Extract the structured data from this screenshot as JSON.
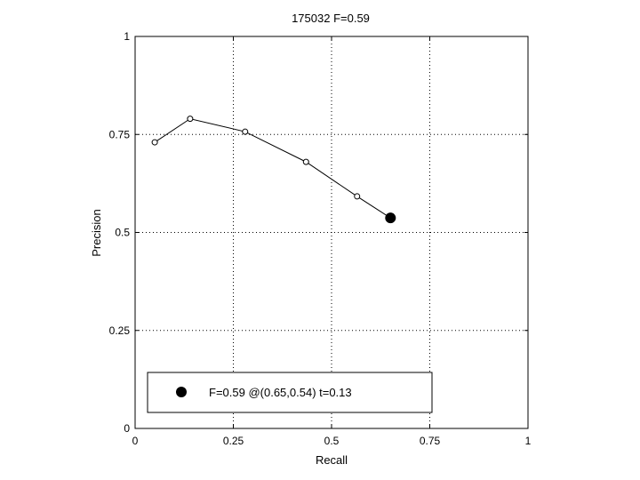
{
  "chart_data": {
    "type": "line",
    "title": "175032 F=0.59",
    "xlabel": "Recall",
    "ylabel": "Precision",
    "xlim": [
      0,
      1
    ],
    "ylim": [
      0,
      1
    ],
    "xticks": [
      "0",
      "0.25",
      "0.5",
      "0.75",
      "1"
    ],
    "yticks": [
      "0",
      "0.25",
      "0.5",
      "0.75",
      "1"
    ],
    "xtick_values": [
      0,
      0.25,
      0.5,
      0.75,
      1
    ],
    "ytick_values": [
      0,
      0.25,
      0.5,
      0.75,
      1
    ],
    "grid": true,
    "series": [
      {
        "x": [
          0.05,
          0.14,
          0.28,
          0.435,
          0.565
        ],
        "y": [
          0.73,
          0.79,
          0.757,
          0.68,
          0.592
        ]
      }
    ],
    "best_point": {
      "x": 0.65,
      "y": 0.537
    },
    "legend": {
      "placement": "bottom-left",
      "text": "F=0.59 @(0.65,0.54) t=0.13"
    }
  }
}
